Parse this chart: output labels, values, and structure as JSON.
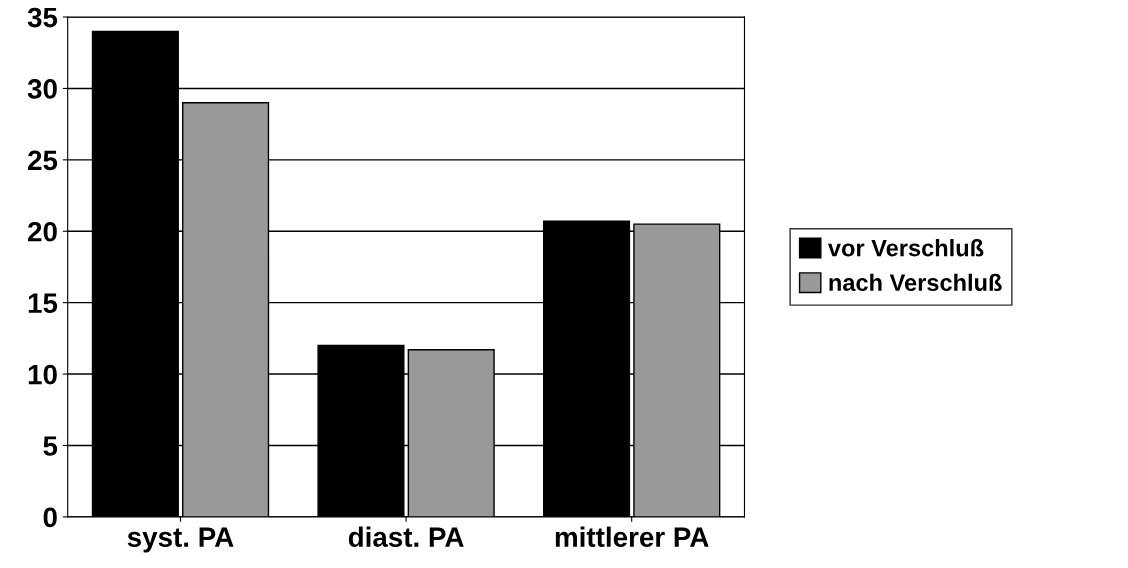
{
  "chart_data": {
    "type": "bar",
    "categories": [
      "syst. PA",
      "diast. PA",
      "mittlerer PA"
    ],
    "series": [
      {
        "name": "vor Verschluß",
        "color": "#000000",
        "values": [
          34,
          12,
          20.7
        ]
      },
      {
        "name": "nach Verschluß",
        "color": "#999999",
        "values": [
          29,
          11.7,
          20.5
        ]
      }
    ],
    "ylim": [
      0,
      35
    ],
    "yticks": [
      0,
      5,
      10,
      15,
      20,
      25,
      30,
      35
    ],
    "grid": "y",
    "legend": "right"
  }
}
